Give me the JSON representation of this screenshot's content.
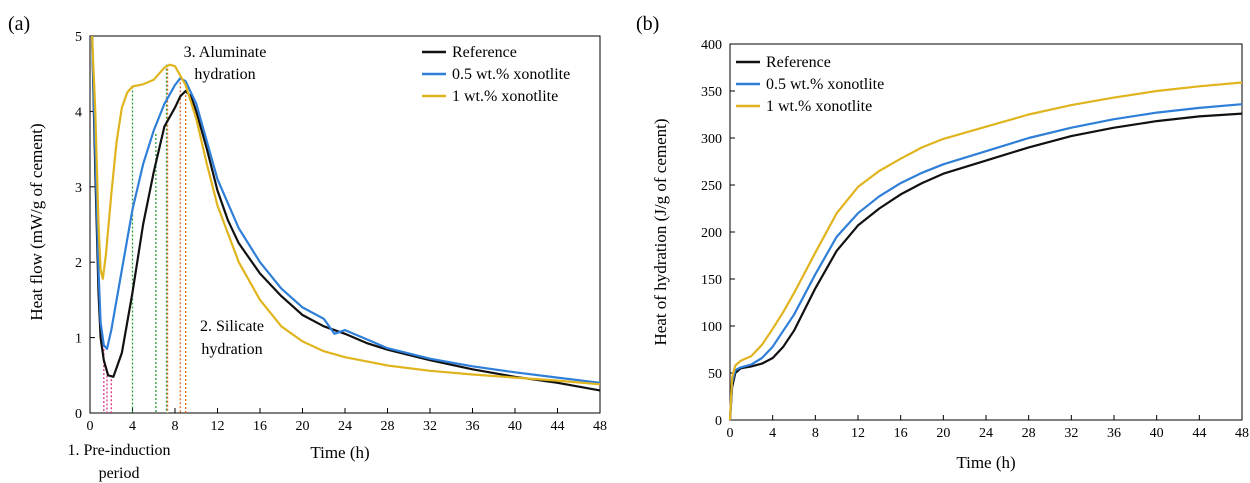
{
  "colors": {
    "Reference": "#111111",
    "0.5 wt.% xonotlite": "#2f7fd8",
    "1 wt.% xonotlite": "#e0b41e",
    "pink": "#d6338a",
    "green": "#2a9a3a",
    "orange": "#e06a1a"
  },
  "chart_data": [
    {
      "panel_label": "(a)",
      "type": "line",
      "xlabel": "Time (h)",
      "ylabel": "Heat flow (mW/g of cement)",
      "xlim": [
        0,
        48
      ],
      "ylim": [
        0,
        5
      ],
      "xticks": [
        0,
        4,
        8,
        12,
        16,
        20,
        24,
        28,
        32,
        36,
        40,
        44,
        48
      ],
      "yticks": [
        0,
        1,
        2,
        3,
        4,
        5
      ],
      "legend_position": "top-right",
      "series": [
        {
          "name": "Reference",
          "color": "#111111",
          "points": [
            [
              0.2,
              5
            ],
            [
              0.5,
              3.2
            ],
            [
              0.8,
              1.6
            ],
            [
              1,
              1.0
            ],
            [
              1.3,
              0.7
            ],
            [
              1.7,
              0.5
            ],
            [
              2.2,
              0.48
            ],
            [
              3,
              0.8
            ],
            [
              4,
              1.6
            ],
            [
              5,
              2.5
            ],
            [
              6,
              3.2
            ],
            [
              7,
              3.8
            ],
            [
              8,
              4.05
            ],
            [
              8.5,
              4.2
            ],
            [
              9,
              4.27
            ],
            [
              9.5,
              4.2
            ],
            [
              10,
              4.0
            ],
            [
              11,
              3.5
            ],
            [
              12,
              2.95
            ],
            [
              13,
              2.55
            ],
            [
              14,
              2.25
            ],
            [
              16,
              1.85
            ],
            [
              18,
              1.55
            ],
            [
              20,
              1.3
            ],
            [
              22,
              1.15
            ],
            [
              24,
              1.05
            ],
            [
              26,
              0.93
            ],
            [
              28,
              0.84
            ],
            [
              32,
              0.7
            ],
            [
              36,
              0.58
            ],
            [
              40,
              0.48
            ],
            [
              44,
              0.4
            ],
            [
              48,
              0.3
            ]
          ]
        },
        {
          "name": "0.5 wt.% xonotlite",
          "color": "#2f7fd8",
          "points": [
            [
              0.2,
              5
            ],
            [
              0.5,
              3.5
            ],
            [
              0.8,
              1.9
            ],
            [
              1,
              1.2
            ],
            [
              1.3,
              0.9
            ],
            [
              1.6,
              0.85
            ],
            [
              2,
              1.1
            ],
            [
              3,
              1.9
            ],
            [
              4,
              2.7
            ],
            [
              5,
              3.3
            ],
            [
              6,
              3.75
            ],
            [
              7,
              4.1
            ],
            [
              8,
              4.35
            ],
            [
              8.5,
              4.44
            ],
            [
              9,
              4.4
            ],
            [
              10,
              4.1
            ],
            [
              11,
              3.6
            ],
            [
              12,
              3.1
            ],
            [
              14,
              2.45
            ],
            [
              16,
              2.0
            ],
            [
              18,
              1.65
            ],
            [
              20,
              1.4
            ],
            [
              22,
              1.25
            ],
            [
              23,
              1.05
            ],
            [
              24,
              1.1
            ],
            [
              26,
              0.98
            ],
            [
              28,
              0.86
            ],
            [
              32,
              0.72
            ],
            [
              36,
              0.62
            ],
            [
              40,
              0.54
            ],
            [
              44,
              0.47
            ],
            [
              48,
              0.4
            ]
          ]
        },
        {
          "name": "1 wt.% xonotlite",
          "color": "#e0b41e",
          "points": [
            [
              0.2,
              5
            ],
            [
              0.5,
              4.0
            ],
            [
              0.8,
              2.5
            ],
            [
              1,
              1.9
            ],
            [
              1.2,
              1.78
            ],
            [
              1.5,
              2.1
            ],
            [
              2,
              2.9
            ],
            [
              2.5,
              3.6
            ],
            [
              3,
              4.05
            ],
            [
              3.5,
              4.25
            ],
            [
              4,
              4.33
            ],
            [
              5,
              4.36
            ],
            [
              6,
              4.42
            ],
            [
              7,
              4.58
            ],
            [
              7.5,
              4.62
            ],
            [
              8,
              4.6
            ],
            [
              9,
              4.35
            ],
            [
              10,
              3.9
            ],
            [
              11,
              3.3
            ],
            [
              12,
              2.75
            ],
            [
              14,
              2.0
            ],
            [
              16,
              1.5
            ],
            [
              18,
              1.15
            ],
            [
              20,
              0.95
            ],
            [
              22,
              0.82
            ],
            [
              24,
              0.74
            ],
            [
              28,
              0.63
            ],
            [
              32,
              0.56
            ],
            [
              36,
              0.51
            ],
            [
              40,
              0.47
            ],
            [
              44,
              0.43
            ],
            [
              48,
              0.38
            ]
          ]
        }
      ],
      "markers": [
        {
          "x": 1.3,
          "y": 0.9,
          "color": "#d6338a"
        },
        {
          "x": 1.6,
          "y": 0.55,
          "color": "#d6338a"
        },
        {
          "x": 2.0,
          "y": 0.5,
          "color": "#d6338a"
        },
        {
          "x": 4.0,
          "y": 4.33,
          "color": "#2a9a3a"
        },
        {
          "x": 6.2,
          "y": 3.7,
          "color": "#2a9a3a"
        },
        {
          "x": 7.2,
          "y": 4.62,
          "color": "#2a9a3a"
        },
        {
          "x": 7.3,
          "y": 4.62,
          "color": "#e06a1a"
        },
        {
          "x": 8.5,
          "y": 4.44,
          "color": "#e06a1a"
        },
        {
          "x": 9.0,
          "y": 4.27,
          "color": "#e06a1a"
        }
      ],
      "annotations": [
        {
          "id": "ann_aluminate_1",
          "text": "3. Aluminate",
          "color": "#e06a1a"
        },
        {
          "id": "ann_aluminate_2",
          "text": "hydration",
          "color": "#e06a1a"
        },
        {
          "id": "ann_silicate_1",
          "text": "2. Silicate",
          "color": "#2a9a3a"
        },
        {
          "id": "ann_silicate_2",
          "text": "hydration",
          "color": "#2a9a3a"
        },
        {
          "id": "ann_preind_1",
          "text": "1. Pre-induction",
          "color": "#d6338a"
        },
        {
          "id": "ann_preind_2",
          "text": "period",
          "color": "#d6338a"
        }
      ]
    },
    {
      "panel_label": "(b)",
      "type": "line",
      "xlabel": "Time (h)",
      "ylabel": "Heat of hydration (J/g of cement)",
      "xlim": [
        0,
        48
      ],
      "ylim": [
        0,
        400
      ],
      "xticks": [
        0,
        4,
        8,
        12,
        16,
        20,
        24,
        28,
        32,
        36,
        40,
        44,
        48
      ],
      "yticks": [
        0,
        50,
        100,
        150,
        200,
        250,
        300,
        350,
        400
      ],
      "legend_position": "top-left",
      "series": [
        {
          "name": "Reference",
          "color": "#111111",
          "points": [
            [
              0,
              0
            ],
            [
              0.2,
              35
            ],
            [
              0.5,
              50
            ],
            [
              1,
              55
            ],
            [
              2,
              57
            ],
            [
              3,
              60
            ],
            [
              4,
              66
            ],
            [
              5,
              78
            ],
            [
              6,
              95
            ],
            [
              8,
              140
            ],
            [
              10,
              180
            ],
            [
              12,
              207
            ],
            [
              14,
              225
            ],
            [
              16,
              240
            ],
            [
              18,
              252
            ],
            [
              20,
              262
            ],
            [
              24,
              276
            ],
            [
              28,
              290
            ],
            [
              32,
              302
            ],
            [
              36,
              311
            ],
            [
              40,
              318
            ],
            [
              44,
              323
            ],
            [
              48,
              326
            ]
          ]
        },
        {
          "name": "0.5 wt.% xonotlite",
          "color": "#2f7fd8",
          "points": [
            [
              0,
              0
            ],
            [
              0.2,
              40
            ],
            [
              0.5,
              53
            ],
            [
              1,
              56
            ],
            [
              2,
              59
            ],
            [
              3,
              66
            ],
            [
              4,
              78
            ],
            [
              5,
              95
            ],
            [
              6,
              112
            ],
            [
              8,
              155
            ],
            [
              10,
              195
            ],
            [
              12,
              220
            ],
            [
              14,
              238
            ],
            [
              16,
              252
            ],
            [
              18,
              263
            ],
            [
              20,
              272
            ],
            [
              24,
              286
            ],
            [
              28,
              300
            ],
            [
              32,
              311
            ],
            [
              36,
              320
            ],
            [
              40,
              327
            ],
            [
              44,
              332
            ],
            [
              48,
              336
            ]
          ]
        },
        {
          "name": "1 wt.% xonotlite",
          "color": "#e0b41e",
          "points": [
            [
              0,
              0
            ],
            [
              0.2,
              45
            ],
            [
              0.5,
              58
            ],
            [
              1,
              63
            ],
            [
              2,
              68
            ],
            [
              3,
              80
            ],
            [
              4,
              97
            ],
            [
              5,
              115
            ],
            [
              6,
              135
            ],
            [
              8,
              178
            ],
            [
              10,
              220
            ],
            [
              12,
              248
            ],
            [
              14,
              265
            ],
            [
              16,
              278
            ],
            [
              18,
              290
            ],
            [
              20,
              299
            ],
            [
              24,
              312
            ],
            [
              28,
              325
            ],
            [
              32,
              335
            ],
            [
              36,
              343
            ],
            [
              40,
              350
            ],
            [
              44,
              355
            ],
            [
              48,
              359
            ]
          ]
        }
      ]
    }
  ]
}
